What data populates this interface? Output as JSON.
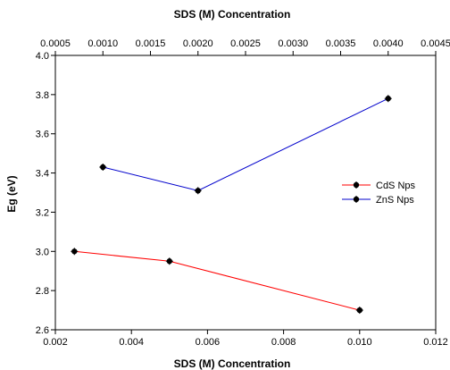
{
  "chart_data": {
    "type": "line",
    "title": "",
    "xlabel": "SDS (M) Concentration",
    "x2label": "SDS (M) Concentration",
    "ylabel": "Eg (eV)",
    "xlim": [
      0.002,
      0.012
    ],
    "x2lim": [
      0.0005,
      0.0045
    ],
    "ylim": [
      2.6,
      4.0
    ],
    "xticks": [
      "0.002",
      "0.004",
      "0.006",
      "0.008",
      "0.010",
      "0.012"
    ],
    "x2ticks": [
      "0.0005",
      "0.0010",
      "0.0015",
      "0.0020",
      "0.0025",
      "0.0030",
      "0.0035",
      "0.0040",
      "0.0045"
    ],
    "yticks": [
      "2.6",
      "2.8",
      "3.0",
      "3.2",
      "3.4",
      "3.6",
      "3.8",
      "4.0"
    ],
    "grid": false,
    "legend_position": "right",
    "series": [
      {
        "name": "CdS Nps",
        "color": "#ff0000",
        "axis": "bottom",
        "x": [
          0.0025,
          0.005,
          0.01
        ],
        "y": [
          3.0,
          2.95,
          2.7
        ]
      },
      {
        "name": "ZnS Nps",
        "color": "#0000cc",
        "axis": "top",
        "x": [
          0.001,
          0.002,
          0.004
        ],
        "y": [
          3.43,
          3.31,
          3.78
        ]
      }
    ]
  }
}
